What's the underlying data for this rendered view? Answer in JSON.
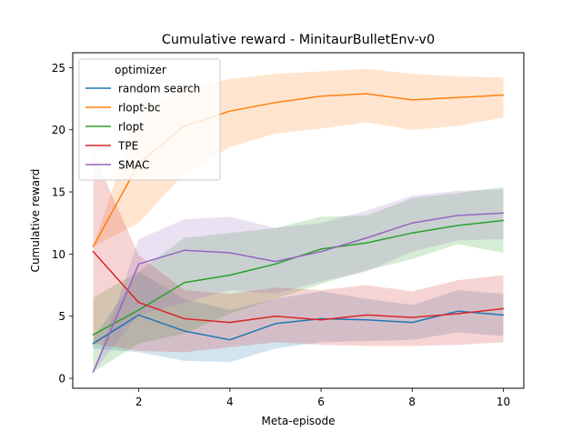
{
  "chart_data": {
    "type": "line",
    "title": "Cumulative reward - MinitaurBulletEnv-v0",
    "xlabel": "Meta-episode",
    "ylabel": "Cumulative reward",
    "xlim": [
      0.55,
      10.45
    ],
    "ylim": [
      -0.8,
      26.2
    ],
    "xticks": [
      2,
      4,
      6,
      8,
      10
    ],
    "yticks": [
      0,
      5,
      10,
      15,
      20,
      25
    ],
    "grid": false,
    "legend": {
      "title": "optimizer",
      "position": "top-left"
    },
    "x": [
      1,
      2,
      3,
      4,
      5,
      6,
      7,
      8,
      9,
      10
    ],
    "series": [
      {
        "name": "random search",
        "color": "#1f77b4",
        "values": [
          2.8,
          5.1,
          3.8,
          3.1,
          4.4,
          4.8,
          4.7,
          4.5,
          5.4,
          5.1
        ],
        "lower": [
          2.4,
          2.1,
          1.4,
          1.3,
          2.4,
          2.9,
          3.0,
          3.1,
          3.7,
          3.4
        ],
        "upper": [
          3.2,
          8.6,
          6.4,
          5.5,
          6.4,
          7.0,
          6.4,
          5.9,
          7.1,
          6.8
        ]
      },
      {
        "name": "rlopt-bc",
        "color": "#ff7f0e",
        "values": [
          10.6,
          17.3,
          20.3,
          21.5,
          22.2,
          22.7,
          22.9,
          22.4,
          22.6,
          22.8
        ],
        "lower": [
          10.6,
          12.5,
          16.5,
          18.6,
          19.7,
          20.1,
          20.6,
          20.0,
          20.3,
          21.0
        ],
        "upper": [
          10.6,
          21.5,
          23.2,
          24.1,
          24.5,
          24.7,
          24.9,
          24.5,
          24.3,
          24.2
        ]
      },
      {
        "name": "rlopt",
        "color": "#2ca02c",
        "values": [
          3.5,
          5.5,
          7.7,
          8.3,
          9.2,
          10.4,
          10.9,
          11.7,
          12.3,
          12.7
        ],
        "lower": [
          0.5,
          2.8,
          3.6,
          5.2,
          6.4,
          7.6,
          8.7,
          9.6,
          10.8,
          10.1
        ],
        "upper": [
          6.5,
          8.6,
          11.3,
          11.7,
          12.1,
          13.0,
          13.1,
          14.5,
          14.9,
          15.4
        ]
      },
      {
        "name": "TPE",
        "color": "#d62728",
        "values": [
          10.2,
          6.1,
          4.8,
          4.5,
          5.0,
          4.7,
          5.1,
          4.9,
          5.2,
          5.6
        ],
        "lower": [
          2.8,
          2.2,
          2.1,
          2.5,
          2.9,
          2.7,
          2.6,
          2.6,
          2.7,
          2.9
        ],
        "upper": [
          18.1,
          9.9,
          7.1,
          6.8,
          7.3,
          7.1,
          7.5,
          7.0,
          7.9,
          8.3
        ]
      },
      {
        "name": "SMAC",
        "color": "#9467bd",
        "values": [
          0.5,
          9.2,
          10.3,
          10.1,
          9.4,
          10.2,
          11.3,
          12.5,
          13.1,
          13.3
        ],
        "lower": [
          0.5,
          5.1,
          6.1,
          7.1,
          6.8,
          7.8,
          8.6,
          10.2,
          11.1,
          11.2
        ],
        "upper": [
          0.5,
          11.2,
          12.8,
          13.0,
          12.1,
          12.5,
          13.5,
          14.7,
          15.1,
          15.2
        ]
      }
    ]
  }
}
